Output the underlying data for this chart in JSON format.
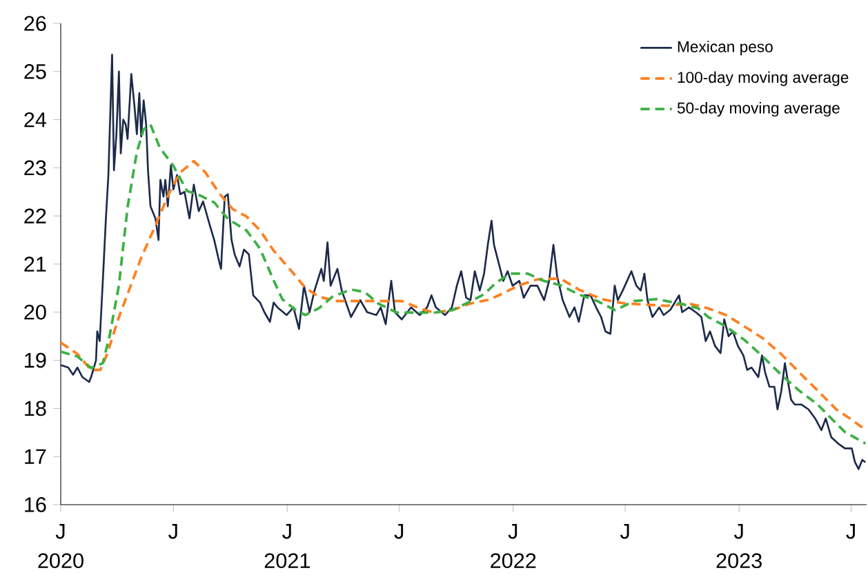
{
  "chart_data": {
    "type": "line",
    "xlim": [
      "2020-01-01",
      "2023-07-26"
    ],
    "ylim": [
      16,
      26
    ],
    "yticks": [
      16,
      17,
      18,
      19,
      20,
      21,
      22,
      23,
      24,
      25,
      26
    ],
    "xticks": [
      {
        "value": "2020-01-01",
        "label": "J 2020"
      },
      {
        "value": "2020-07-01",
        "label": "J"
      },
      {
        "value": "2021-01-01",
        "label": "J 2021"
      },
      {
        "value": "2021-07-01",
        "label": "J"
      },
      {
        "value": "2022-01-01",
        "label": "J 2022"
      },
      {
        "value": "2022-07-01",
        "label": "J"
      },
      {
        "value": "2023-01-01",
        "label": "J 2023"
      },
      {
        "value": "2023-07-01",
        "label": "J"
      }
    ],
    "legend": "top right",
    "grid": false,
    "marker": "none",
    "series": [
      {
        "name": "Mexican peso",
        "color": "#1c2a4a",
        "line_style": "solid",
        "x": [
          "2020-01-01",
          "2020-01-13",
          "2020-01-21",
          "2020-01-28",
          "2020-02-05",
          "2020-02-16",
          "2020-02-19",
          "2020-02-27",
          "2020-02-29",
          "2020-03-04",
          "2020-03-09",
          "2020-03-14",
          "2020-03-18",
          "2020-03-24",
          "2020-03-27",
          "2020-03-31",
          "2020-04-04",
          "2020-04-07",
          "2020-04-11",
          "2020-04-15",
          "2020-04-18",
          "2020-04-24",
          "2020-04-29",
          "2020-05-03",
          "2020-05-07",
          "2020-05-10",
          "2020-05-14",
          "2020-05-18",
          "2020-05-21",
          "2020-05-25",
          "2020-06-02",
          "2020-06-07",
          "2020-06-10",
          "2020-06-15",
          "2020-06-18",
          "2020-06-22",
          "2020-06-27",
          "2020-07-01",
          "2020-07-07",
          "2020-07-12",
          "2020-07-19",
          "2020-07-27",
          "2020-08-03",
          "2020-08-11",
          "2020-08-18",
          "2020-08-29",
          "2020-09-05",
          "2020-09-13",
          "2020-09-16",
          "2020-09-22",
          "2020-09-27",
          "2020-10-03",
          "2020-10-08",
          "2020-10-16",
          "2020-10-23",
          "2020-10-31",
          "2020-11-07",
          "2020-11-18",
          "2020-11-25",
          "2020-12-04",
          "2020-12-10",
          "2020-12-16",
          "2020-12-31",
          "2021-01-11",
          "2021-01-20",
          "2021-01-28",
          "2021-02-06",
          "2021-02-14",
          "2021-02-25",
          "2021-03-01",
          "2021-03-07",
          "2021-03-12",
          "2021-03-23",
          "2021-03-30",
          "2021-04-14",
          "2021-04-29",
          "2021-05-10",
          "2021-05-25",
          "2021-06-01",
          "2021-06-09",
          "2021-06-18",
          "2021-06-24",
          "2021-07-05",
          "2021-07-20",
          "2021-08-03",
          "2021-08-15",
          "2021-08-22",
          "2021-08-29",
          "2021-09-13",
          "2021-09-24",
          "2021-10-02",
          "2021-10-09",
          "2021-10-17",
          "2021-10-24",
          "2021-10-31",
          "2021-11-08",
          "2021-11-15",
          "2021-11-21",
          "2021-11-27",
          "2021-12-01",
          "2021-12-08",
          "2021-12-16",
          "2021-12-23",
          "2021-12-31",
          "2022-01-11",
          "2022-01-18",
          "2022-01-29",
          "2022-02-09",
          "2022-02-20",
          "2022-02-28",
          "2022-03-07",
          "2022-03-13",
          "2022-03-22",
          "2022-04-02",
          "2022-04-10",
          "2022-04-17",
          "2022-04-26",
          "2022-05-06",
          "2022-05-15",
          "2022-05-23",
          "2022-05-30",
          "2022-06-07",
          "2022-06-14",
          "2022-06-19",
          "2022-06-27",
          "2022-07-04",
          "2022-07-11",
          "2022-07-19",
          "2022-07-26",
          "2022-08-01",
          "2022-08-06",
          "2022-08-14",
          "2022-08-25",
          "2022-09-01",
          "2022-09-12",
          "2022-09-26",
          "2022-10-01",
          "2022-10-12",
          "2022-10-24",
          "2022-11-01",
          "2022-11-08",
          "2022-11-15",
          "2022-11-23",
          "2022-12-02",
          "2022-12-08",
          "2022-12-15",
          "2022-12-22",
          "2022-12-30",
          "2023-01-08",
          "2023-01-14",
          "2023-01-21",
          "2023-02-01",
          "2023-02-07",
          "2023-02-12",
          "2023-02-19",
          "2023-02-27",
          "2023-03-04",
          "2023-03-10",
          "2023-03-16",
          "2023-03-21",
          "2023-03-26",
          "2023-04-01",
          "2023-04-12",
          "2023-04-23",
          "2023-05-04",
          "2023-05-14",
          "2023-05-21",
          "2023-05-30",
          "2023-06-10",
          "2023-06-21",
          "2023-07-02",
          "2023-07-07",
          "2023-07-13",
          "2023-07-19",
          "2023-07-24"
        ],
        "values": [
          18.9,
          18.85,
          18.7,
          18.85,
          18.65,
          18.55,
          18.65,
          19.0,
          19.6,
          19.4,
          20.65,
          21.95,
          22.85,
          25.35,
          22.95,
          23.7,
          25.0,
          23.3,
          24.0,
          23.9,
          23.6,
          24.95,
          24.3,
          23.7,
          24.55,
          23.65,
          24.4,
          23.9,
          22.95,
          22.2,
          21.95,
          21.5,
          22.75,
          22.4,
          22.75,
          22.2,
          23.05,
          22.55,
          22.85,
          22.45,
          22.5,
          21.95,
          22.65,
          22.1,
          22.3,
          21.8,
          21.5,
          21.05,
          20.9,
          22.4,
          22.45,
          21.5,
          21.2,
          20.95,
          21.3,
          21.2,
          20.35,
          20.2,
          20.0,
          19.8,
          20.2,
          20.1,
          19.94,
          20.1,
          19.65,
          20.55,
          20.0,
          20.45,
          20.9,
          20.65,
          21.45,
          20.55,
          20.9,
          20.45,
          19.9,
          20.25,
          20.0,
          19.94,
          20.1,
          19.75,
          20.65,
          20.0,
          19.85,
          20.1,
          19.94,
          20.1,
          20.35,
          20.1,
          19.94,
          20.1,
          20.55,
          20.85,
          20.3,
          20.25,
          20.85,
          20.45,
          20.8,
          21.4,
          21.9,
          21.4,
          21.05,
          20.65,
          20.85,
          20.55,
          20.65,
          20.3,
          20.55,
          20.55,
          20.25,
          20.65,
          21.4,
          20.75,
          20.25,
          19.9,
          20.1,
          19.8,
          20.35,
          20.35,
          20.1,
          19.9,
          19.6,
          19.55,
          20.55,
          20.25,
          20.45,
          20.65,
          20.85,
          20.55,
          20.45,
          20.8,
          20.25,
          19.9,
          20.1,
          19.94,
          20.05,
          20.35,
          20.0,
          20.1,
          19.99,
          19.9,
          19.4,
          19.6,
          19.3,
          19.15,
          19.85,
          19.5,
          19.6,
          19.3,
          19.1,
          18.8,
          18.85,
          18.65,
          19.1,
          18.75,
          18.45,
          18.45,
          17.98,
          18.35,
          18.94,
          18.55,
          18.18,
          18.08,
          18.08,
          17.98,
          17.79,
          17.55,
          17.79,
          17.4,
          17.27,
          17.17,
          17.17,
          16.89,
          16.74,
          16.93,
          16.88
        ]
      },
      {
        "name": "100-day moving average",
        "color": "#ff7f1e",
        "line_style": "dashed",
        "x": [
          "2020-01-01",
          "2020-01-28",
          "2020-02-19",
          "2020-03-05",
          "2020-03-16",
          "2020-04-04",
          "2020-04-26",
          "2020-05-10",
          "2020-06-02",
          "2020-06-24",
          "2020-07-12",
          "2020-08-03",
          "2020-08-22",
          "2020-09-13",
          "2020-10-05",
          "2020-10-27",
          "2020-11-18",
          "2020-12-10",
          "2021-01-08",
          "2021-01-30",
          "2021-02-21",
          "2021-03-23",
          "2021-04-29",
          "2021-06-05",
          "2021-07-05",
          "2021-08-03",
          "2021-08-26",
          "2021-09-24",
          "2021-10-24",
          "2021-11-23",
          "2021-12-12",
          "2022-01-11",
          "2022-02-09",
          "2022-03-18",
          "2022-04-17",
          "2022-05-24",
          "2022-06-30",
          "2022-07-30",
          "2022-09-05",
          "2022-10-12",
          "2022-11-12",
          "2022-12-11",
          "2023-01-10",
          "2023-02-08",
          "2023-03-10",
          "2023-04-08",
          "2023-05-08",
          "2023-06-07",
          "2023-06-29",
          "2023-07-24"
        ],
        "values": [
          19.37,
          19.13,
          18.8,
          18.8,
          19.13,
          19.9,
          20.65,
          21.13,
          21.8,
          22.47,
          22.9,
          23.14,
          22.9,
          22.47,
          22.14,
          21.99,
          21.7,
          21.28,
          20.85,
          20.51,
          20.32,
          20.23,
          20.23,
          20.23,
          20.23,
          20.08,
          19.99,
          20.04,
          20.18,
          20.26,
          20.37,
          20.56,
          20.68,
          20.7,
          20.47,
          20.27,
          20.18,
          20.16,
          20.13,
          20.18,
          20.08,
          19.94,
          19.7,
          19.46,
          19.13,
          18.75,
          18.37,
          17.98,
          17.79,
          17.56
        ]
      },
      {
        "name": "50-day moving average",
        "color": "#3cb043",
        "line_style": "dashed",
        "x": [
          "2020-01-01",
          "2020-01-28",
          "2020-02-19",
          "2020-03-09",
          "2020-03-20",
          "2020-04-04",
          "2020-04-18",
          "2020-05-03",
          "2020-05-14",
          "2020-05-25",
          "2020-06-09",
          "2020-07-01",
          "2020-07-23",
          "2020-08-14",
          "2020-09-05",
          "2020-09-27",
          "2020-10-27",
          "2020-11-18",
          "2020-12-10",
          "2020-12-24",
          "2021-01-15",
          "2021-01-30",
          "2021-02-21",
          "2021-03-15",
          "2021-04-14",
          "2021-05-06",
          "2021-05-28",
          "2021-06-27",
          "2021-07-27",
          "2021-08-26",
          "2021-09-24",
          "2021-10-17",
          "2021-11-15",
          "2021-12-04",
          "2021-12-27",
          "2022-01-25",
          "2022-02-17",
          "2022-03-18",
          "2022-04-17",
          "2022-05-17",
          "2022-06-15",
          "2022-07-15",
          "2022-08-21",
          "2022-09-27",
          "2022-10-27",
          "2022-11-12",
          "2022-12-11",
          "2023-01-10",
          "2023-02-08",
          "2023-03-10",
          "2023-04-08",
          "2023-05-08",
          "2023-05-30",
          "2023-06-21",
          "2023-07-24"
        ],
        "values": [
          19.18,
          19.08,
          18.84,
          18.94,
          19.51,
          20.56,
          22.18,
          23.33,
          23.8,
          23.9,
          23.42,
          23.04,
          22.52,
          22.42,
          22.28,
          21.94,
          21.7,
          21.32,
          20.66,
          20.27,
          20.04,
          19.94,
          20.08,
          20.32,
          20.47,
          20.42,
          20.18,
          19.99,
          19.99,
          19.99,
          20.04,
          20.18,
          20.37,
          20.61,
          20.8,
          20.8,
          20.66,
          20.56,
          20.37,
          20.23,
          20.04,
          20.23,
          20.27,
          20.18,
          20.08,
          19.9,
          19.7,
          19.42,
          19.08,
          18.7,
          18.37,
          18.08,
          17.79,
          17.51,
          17.27
        ]
      }
    ]
  }
}
